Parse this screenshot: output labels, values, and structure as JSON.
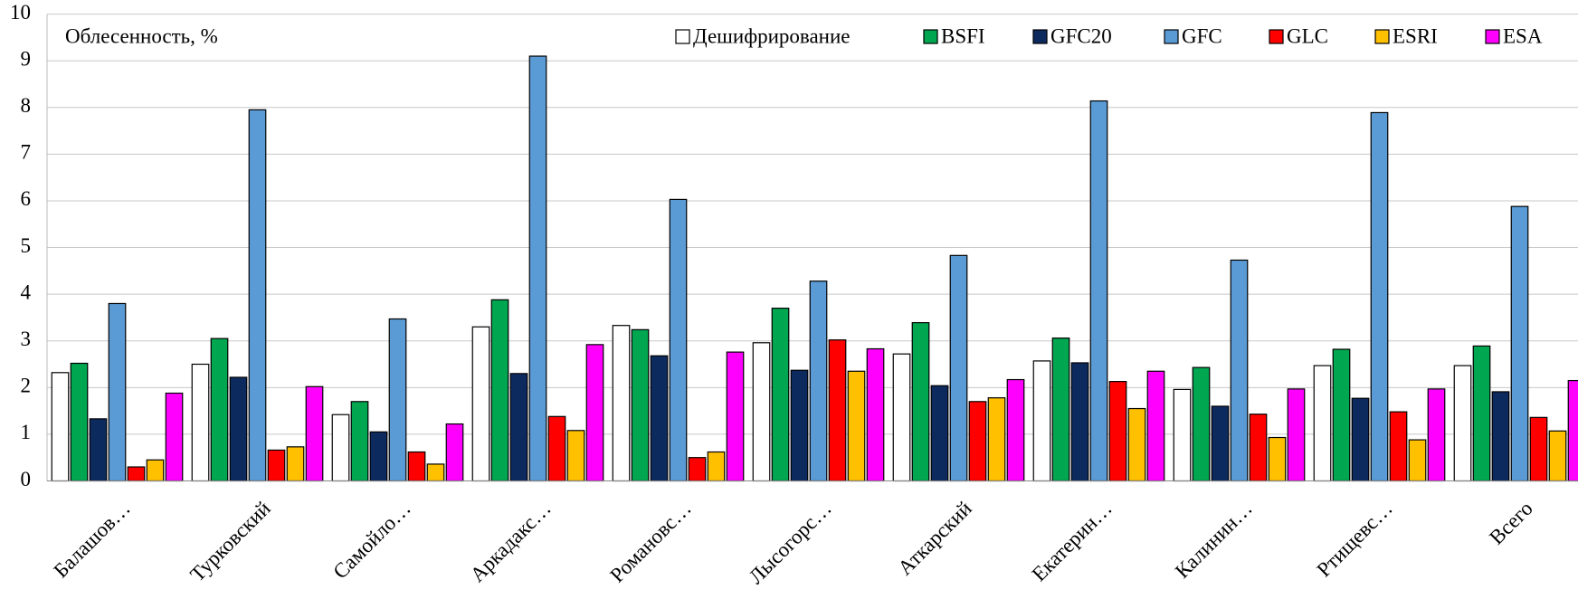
{
  "chart_data": {
    "type": "bar",
    "y_label": "Облесенность, %",
    "categories": [
      "Балашов…",
      "Турковский",
      "Самойло…",
      "Аркадакс…",
      "Романовс…",
      "Лысогорс…",
      "Аткарский",
      "Екатерин…",
      "Калинин…",
      "Ртищевс…",
      "Всего"
    ],
    "series": [
      {
        "name": "Дешифрирование",
        "color": "#ffffff",
        "values": [
          2.32,
          2.5,
          1.42,
          3.3,
          3.33,
          2.96,
          2.72,
          2.57,
          1.96,
          2.47,
          2.47
        ]
      },
      {
        "name": "BSFI",
        "color": "#00a650",
        "values": [
          2.52,
          3.05,
          1.7,
          3.88,
          3.24,
          3.7,
          3.39,
          3.06,
          2.43,
          2.82,
          2.89
        ]
      },
      {
        "name": "GFC20",
        "color": "#0d2a5e",
        "values": [
          1.33,
          2.22,
          1.05,
          2.3,
          2.68,
          2.37,
          2.04,
          2.53,
          1.6,
          1.77,
          1.91
        ]
      },
      {
        "name": "GFC",
        "color": "#5b9bd5",
        "values": [
          3.8,
          7.95,
          3.47,
          9.1,
          6.03,
          4.28,
          4.83,
          8.14,
          4.73,
          7.89,
          5.88
        ]
      },
      {
        "name": "GLC",
        "color": "#ff0000",
        "values": [
          0.3,
          0.66,
          0.62,
          1.38,
          0.5,
          3.02,
          1.7,
          2.13,
          1.43,
          1.48,
          1.36
        ]
      },
      {
        "name": "ESRI",
        "color": "#ffc000",
        "values": [
          0.45,
          0.73,
          0.36,
          1.08,
          0.62,
          2.35,
          1.78,
          1.55,
          0.93,
          0.88,
          1.07
        ]
      },
      {
        "name": "ESA",
        "color": "#ff00ff",
        "values": [
          1.88,
          2.02,
          1.22,
          2.92,
          2.76,
          2.83,
          2.17,
          2.35,
          1.97,
          1.97,
          2.15
        ]
      }
    ],
    "ylim": [
      0,
      10
    ],
    "yticks": [
      0,
      1,
      2,
      3,
      4,
      5,
      6,
      7,
      8,
      9,
      10
    ],
    "grid": true,
    "legend": "top-right"
  }
}
